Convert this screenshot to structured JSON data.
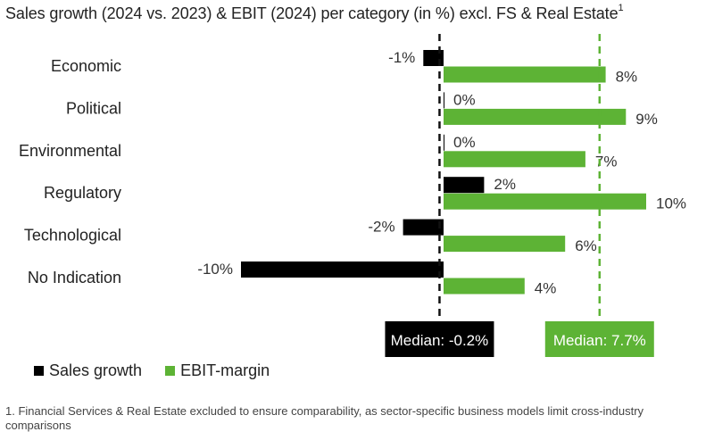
{
  "title": "Sales growth (2024 vs. 2023) & EBIT (2024) per category (in %) excl. FS & Real Estate",
  "title_sup": "1",
  "footnote": "1. Financial Services & Real Estate excluded to ensure comparability, as sector-specific business models limit cross-industry comparisons",
  "colors": {
    "sales": "#000000",
    "ebit": "#5db335"
  },
  "chart_data": {
    "type": "bar",
    "orientation": "horizontal",
    "title": "Sales growth (2024 vs. 2023) & EBIT (2024) per category (in %) excl. FS & Real Estate",
    "categories": [
      "Economic",
      "Political",
      "Environmental",
      "Regulatory",
      "Technological",
      "No Indication"
    ],
    "series": [
      {
        "name": "Sales growth",
        "values": [
          -1,
          0,
          0,
          2,
          -2,
          -10
        ],
        "labels": [
          "-1%",
          "0%",
          "0%",
          "2%",
          "-2%",
          "-10%"
        ],
        "color": "#000000"
      },
      {
        "name": "EBIT-margin",
        "values": [
          8,
          9,
          7,
          10,
          6,
          4
        ],
        "labels": [
          "8%",
          "9%",
          "7%",
          "10%",
          "6%",
          "4%"
        ],
        "color": "#5db335"
      }
    ],
    "xlim": [
      -10,
      10
    ],
    "medians": [
      {
        "series": "Sales growth",
        "value": -0.2,
        "label": "Median: -0.2%"
      },
      {
        "series": "EBIT-margin",
        "value": 7.7,
        "label": "Median: 7.7%"
      }
    ],
    "legend": "bottom-left"
  }
}
